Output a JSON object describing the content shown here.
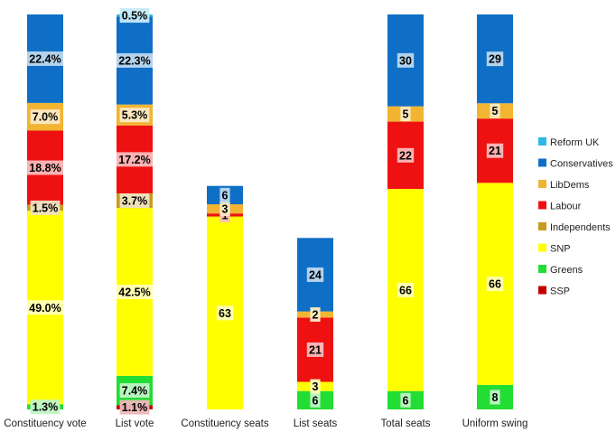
{
  "chart_data": {
    "type": "bar",
    "stacked": true,
    "title": "",
    "xlabel": "",
    "ylabel": "",
    "legend_position": "right",
    "grid": false,
    "colors": {
      "Reform UK": "#2fb7e6",
      "Conservatives": "#0f6fc6",
      "LibDems": "#f2b531",
      "Labour": "#ee1111",
      "Independents": "#c79b20",
      "SNP": "#ffff00",
      "Greens": "#22dd33",
      "SSP": "#c00000"
    },
    "legend": [
      "Reform UK",
      "Conservatives",
      "LibDems",
      "Labour",
      "Independents",
      "SNP",
      "Greens",
      "SSP"
    ],
    "bars": [
      {
        "category": "Constituency vote",
        "scale": 100,
        "segments": [
          {
            "series": "SSP",
            "value": 0.0,
            "label": ""
          },
          {
            "series": "Greens",
            "value": 1.3,
            "label": "1.3%"
          },
          {
            "series": "SNP",
            "value": 49.0,
            "label": "49.0%"
          },
          {
            "series": "Independents",
            "value": 1.5,
            "label": "1.5%"
          },
          {
            "series": "Labour",
            "value": 18.8,
            "label": "18.8%"
          },
          {
            "series": "LibDems",
            "value": 7.0,
            "label": "7.0%"
          },
          {
            "series": "Conservatives",
            "value": 22.4,
            "label": "22.4%"
          },
          {
            "series": "Reform UK",
            "value": 0.0,
            "label": ""
          }
        ]
      },
      {
        "category": "List vote",
        "scale": 100,
        "segments": [
          {
            "series": "SSP",
            "value": 1.1,
            "label": "1.1%"
          },
          {
            "series": "Greens",
            "value": 7.4,
            "label": "7.4%"
          },
          {
            "series": "SNP",
            "value": 42.5,
            "label": "42.5%"
          },
          {
            "series": "Independents",
            "value": 3.7,
            "label": "3.7%"
          },
          {
            "series": "Labour",
            "value": 17.2,
            "label": "17.2%"
          },
          {
            "series": "LibDems",
            "value": 5.3,
            "label": "5.3%"
          },
          {
            "series": "Conservatives",
            "value": 22.3,
            "label": "22.3%"
          },
          {
            "series": "Reform UK",
            "value": 0.5,
            "label": "0.5%"
          }
        ]
      },
      {
        "category": "Constituency seats",
        "scale": 129,
        "segments": [
          {
            "series": "SNP",
            "value": 63,
            "label": "63"
          },
          {
            "series": "Labour",
            "value": 1,
            "label": "1"
          },
          {
            "series": "LibDems",
            "value": 3,
            "label": "3"
          },
          {
            "series": "Conservatives",
            "value": 6,
            "label": "6"
          }
        ]
      },
      {
        "category": "List seats",
        "scale": 129,
        "segments": [
          {
            "series": "Greens",
            "value": 6,
            "label": "6"
          },
          {
            "series": "SNP",
            "value": 3,
            "label": "3"
          },
          {
            "series": "Labour",
            "value": 21,
            "label": "21"
          },
          {
            "series": "LibDems",
            "value": 2,
            "label": "2"
          },
          {
            "series": "Conservatives",
            "value": 24,
            "label": "24"
          }
        ]
      },
      {
        "category": "Total seats",
        "scale": 129,
        "segments": [
          {
            "series": "Greens",
            "value": 6,
            "label": "6"
          },
          {
            "series": "SNP",
            "value": 66,
            "label": "66"
          },
          {
            "series": "Labour",
            "value": 22,
            "label": "22"
          },
          {
            "series": "LibDems",
            "value": 5,
            "label": "5"
          },
          {
            "series": "Conservatives",
            "value": 30,
            "label": "30"
          }
        ]
      },
      {
        "category": "Uniform swing",
        "scale": 129,
        "segments": [
          {
            "series": "Greens",
            "value": 8,
            "label": "8"
          },
          {
            "series": "SNP",
            "value": 66,
            "label": "66"
          },
          {
            "series": "Labour",
            "value": 21,
            "label": "21"
          },
          {
            "series": "LibDems",
            "value": 5,
            "label": "5"
          },
          {
            "series": "Conservatives",
            "value": 29,
            "label": "29"
          }
        ]
      }
    ]
  }
}
